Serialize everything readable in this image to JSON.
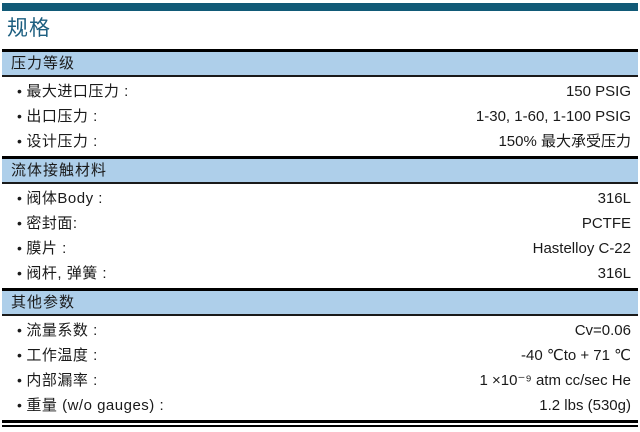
{
  "page": {
    "title": "规格"
  },
  "glyphs": {
    "bullet": "•"
  },
  "colors": {
    "accent_bar": "#115a77",
    "title_text": "#1d5f80",
    "section_band": "#aecfea",
    "rule": "#000000",
    "body_text": "#1a1a1a"
  },
  "sections": [
    {
      "header": "压力等级",
      "rows": [
        {
          "label": "最大进口压力 :",
          "value": "150 PSIG"
        },
        {
          "label": "出口压力 :",
          "value": "1-30, 1-60, 1-100 PSIG"
        },
        {
          "label": "设计压力 :",
          "value": "150% 最大承受压力"
        }
      ]
    },
    {
      "header": "流体接触材料",
      "rows": [
        {
          "label": "阀体Body :",
          "value": "316L"
        },
        {
          "label": "密封面:",
          "value": "PCTFE"
        },
        {
          "label": "膜片 :",
          "value": "Hastelloy C-22"
        },
        {
          "label": "阀杆, 弹簧 :",
          "value": "316L"
        }
      ]
    },
    {
      "header": "其他参数",
      "rows": [
        {
          "label": "流量系数 :",
          "value": "Cv=0.06"
        },
        {
          "label": "工作温度 :",
          "value": "-40 ℃to + 71 ℃"
        },
        {
          "label": "内部漏率 :",
          "value": "1 ×10⁻⁹ atm cc/sec He"
        },
        {
          "label": "重量 (w/o gauges) :",
          "value": "1.2 lbs (530g)"
        }
      ]
    }
  ]
}
